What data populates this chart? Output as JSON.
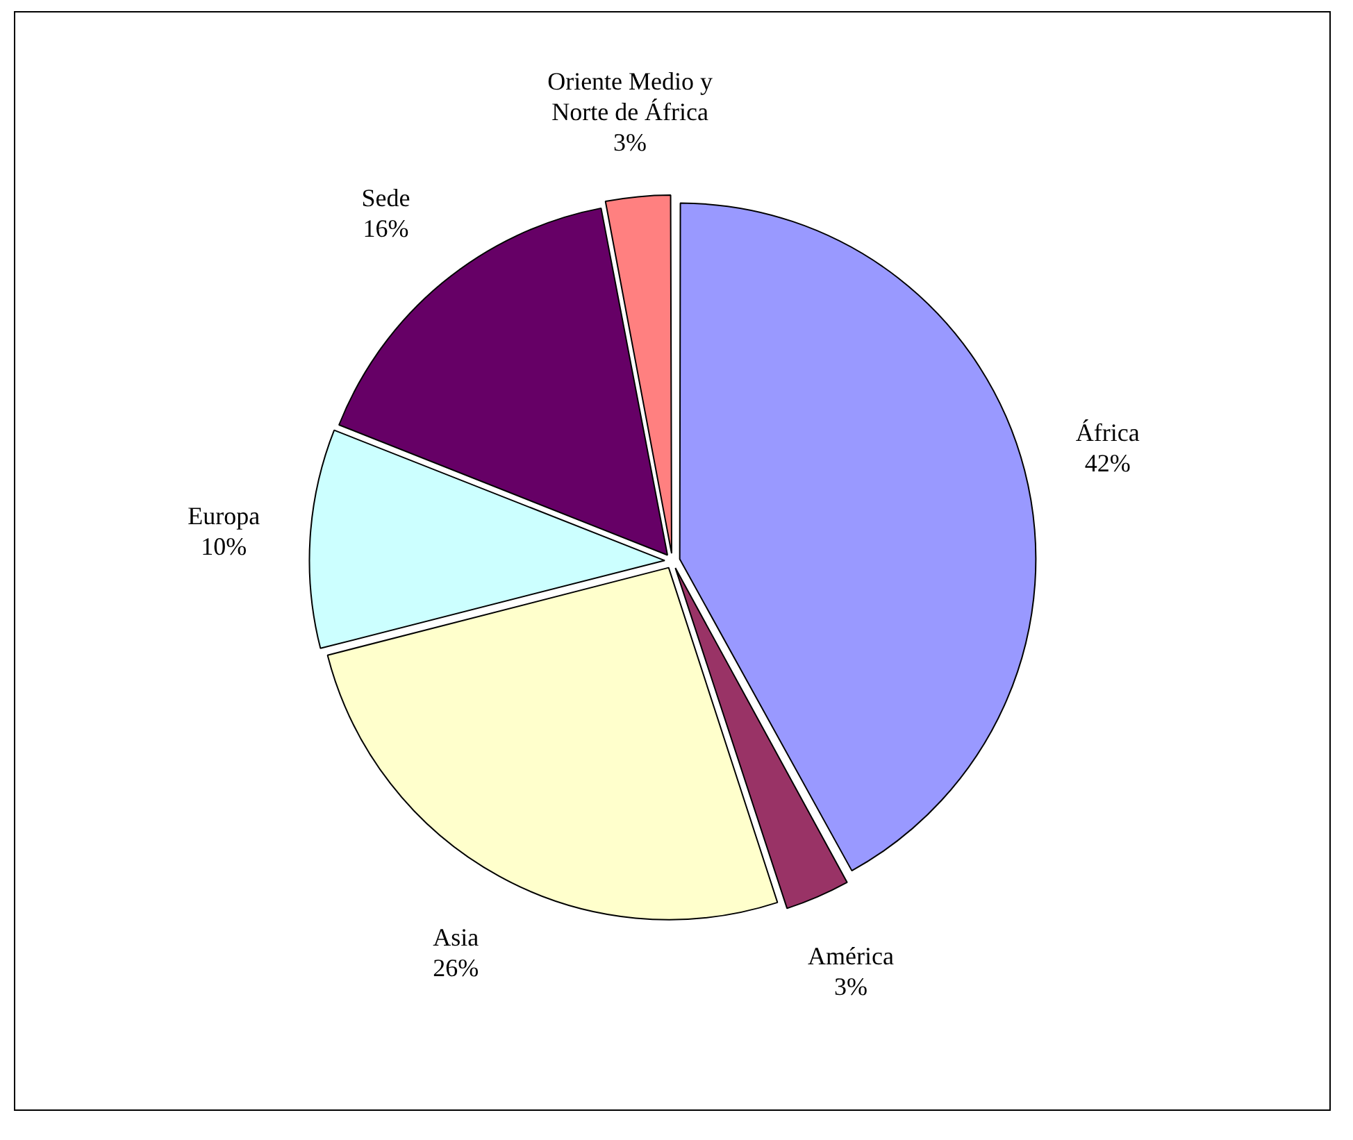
{
  "chart_data": {
    "type": "pie",
    "categories": [
      "África",
      "América",
      "Asia",
      "Europa",
      "Sede",
      "Oriente Medio y Norte de África"
    ],
    "values": [
      42,
      3,
      26,
      10,
      16,
      3
    ],
    "colors": [
      "#9999ff",
      "#993366",
      "#ffffcc",
      "#ccffff",
      "#660066",
      "#ff8080"
    ],
    "value_labels": [
      "42%",
      "3%",
      "26%",
      "10%",
      "16%",
      "3%"
    ]
  }
}
